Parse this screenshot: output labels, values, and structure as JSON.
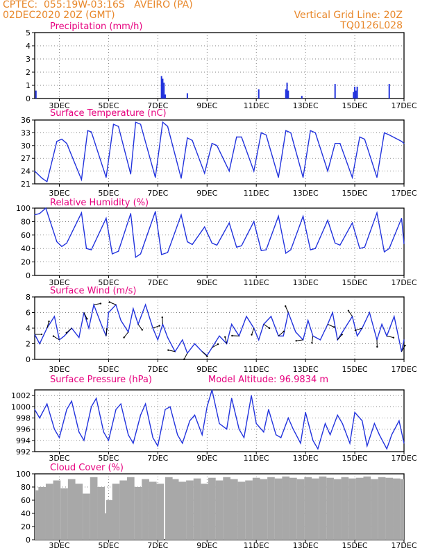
{
  "header": {
    "station": "CPTEC:  055:19W-03:16S   AVEIRO (PA)",
    "date": "02DEC2020 20Z (GMT)",
    "grid_line": "Vertical Grid Line: 20Z",
    "model": "TQ0126L028"
  },
  "colors": {
    "title": "#e6007e",
    "header": "#e8872a",
    "series": "#2233dd",
    "bars": "#2233dd",
    "cloud": "#a8a8a8"
  },
  "x_axis": {
    "start_day": 2.0,
    "end_day": 17.0,
    "tick_labels": [
      "3DEC",
      "5DEC",
      "7DEC",
      "9DEC",
      "11DEC",
      "13DEC",
      "15DEC",
      "17DEC"
    ]
  },
  "chart_data": [
    {
      "id": "precip",
      "type": "bar",
      "title": "Precipitation (mm/h)",
      "ylim": [
        0,
        5
      ],
      "yticks": [
        0,
        1,
        2,
        3,
        4,
        5
      ],
      "x": [
        2.05,
        7.15,
        7.2,
        7.25,
        7.3,
        8.2,
        11.1,
        12.2,
        12.25,
        12.3,
        12.85,
        14.2,
        14.95,
        15.0,
        15.05,
        15.1,
        16.4
      ],
      "values": [
        0.6,
        1.7,
        1.5,
        1.2,
        0.3,
        0.4,
        0.7,
        0.7,
        1.2,
        0.6,
        0.2,
        1.1,
        0.5,
        0.9,
        0.6,
        0.9,
        1.1
      ]
    },
    {
      "id": "temp",
      "type": "line",
      "title": "Surface Temperature (nC)",
      "ylim": [
        21,
        36
      ],
      "yticks": [
        21,
        24,
        27,
        30,
        33,
        36
      ],
      "x": [
        2.0,
        2.3,
        2.5,
        2.9,
        3.1,
        3.3,
        3.9,
        4.15,
        4.3,
        4.9,
        5.2,
        5.4,
        5.9,
        6.1,
        6.3,
        6.9,
        7.2,
        7.4,
        7.95,
        8.2,
        8.4,
        8.9,
        9.2,
        9.4,
        9.9,
        10.2,
        10.4,
        10.9,
        11.2,
        11.4,
        11.9,
        12.2,
        12.4,
        12.9,
        13.2,
        13.4,
        13.9,
        14.2,
        14.4,
        14.9,
        15.2,
        15.4,
        15.9,
        16.2,
        16.4,
        16.9,
        17.0
      ],
      "values": [
        24,
        22.3,
        21.5,
        31,
        31.5,
        30.5,
        22,
        33.5,
        33.2,
        22.5,
        35,
        34.5,
        23.3,
        35.5,
        35,
        22.5,
        35.5,
        34.5,
        22.3,
        31.8,
        31.2,
        23.5,
        30.5,
        30,
        24,
        32,
        32,
        24,
        33,
        32.5,
        22.5,
        33.5,
        33,
        22.5,
        33.5,
        33,
        24,
        30.5,
        30.5,
        22.5,
        32,
        31.5,
        22.5,
        33,
        32.5,
        31,
        30.5
      ]
    },
    {
      "id": "rh",
      "type": "line",
      "title": "Relative Humidity (%)",
      "ylim": [
        0,
        100
      ],
      "yticks": [
        0,
        20,
        40,
        60,
        80,
        100
      ],
      "x": [
        2.0,
        2.2,
        2.45,
        2.9,
        3.1,
        3.3,
        3.9,
        4.1,
        4.3,
        4.9,
        5.15,
        5.4,
        5.9,
        6.1,
        6.3,
        6.9,
        7.15,
        7.4,
        7.95,
        8.2,
        8.4,
        8.9,
        9.2,
        9.4,
        9.9,
        10.2,
        10.4,
        10.9,
        11.2,
        11.4,
        11.9,
        12.2,
        12.4,
        12.9,
        13.2,
        13.4,
        13.9,
        14.2,
        14.4,
        14.9,
        15.2,
        15.4,
        15.9,
        16.2,
        16.4,
        16.9,
        17.0
      ],
      "values": [
        90,
        92,
        100,
        50,
        43,
        48,
        93,
        40,
        38,
        85,
        32,
        36,
        92,
        27,
        32,
        95,
        31,
        34,
        90,
        50,
        46,
        72,
        48,
        45,
        78,
        42,
        44,
        80,
        37,
        38,
        88,
        33,
        38,
        88,
        38,
        40,
        82,
        48,
        45,
        78,
        40,
        42,
        93,
        35,
        40,
        85,
        47
      ]
    },
    {
      "id": "wind",
      "type": "line",
      "title": "Surface Wind (m/s)",
      "ylim": [
        0,
        8
      ],
      "yticks": [
        0,
        2,
        4,
        6,
        8
      ],
      "x": [
        2.0,
        2.2,
        2.5,
        2.8,
        3.0,
        3.2,
        3.5,
        3.8,
        4.0,
        4.2,
        4.4,
        4.7,
        4.9,
        5.0,
        5.3,
        5.5,
        5.8,
        6.0,
        6.2,
        6.5,
        6.8,
        7.0,
        7.2,
        7.4,
        7.7,
        8.0,
        8.2,
        8.5,
        8.8,
        9.0,
        9.2,
        9.5,
        9.8,
        10.0,
        10.3,
        10.6,
        10.9,
        11.1,
        11.3,
        11.6,
        11.9,
        12.1,
        12.3,
        12.6,
        12.9,
        13.1,
        13.3,
        13.6,
        13.9,
        14.1,
        14.3,
        14.6,
        14.9,
        15.1,
        15.3,
        15.6,
        15.9,
        16.1,
        16.3,
        16.6,
        16.9,
        17.0
      ],
      "values": [
        3.2,
        2.0,
        4.0,
        5.5,
        2.5,
        3.0,
        4.0,
        2.8,
        6.0,
        4.0,
        7.0,
        4.5,
        3.0,
        6.0,
        7.0,
        5.0,
        3.5,
        6.5,
        4.5,
        7.0,
        4.0,
        2.5,
        4.5,
        2.8,
        1.0,
        2.5,
        0.8,
        2.0,
        1.0,
        0.5,
        1.5,
        3.0,
        2.0,
        4.5,
        3.0,
        5.5,
        4.0,
        2.5,
        4.5,
        5.5,
        3.0,
        3.0,
        6.0,
        3.5,
        2.5,
        5.0,
        3.0,
        2.5,
        4.5,
        6.0,
        2.5,
        4.0,
        5.5,
        3.0,
        4.0,
        6.0,
        2.5,
        4.5,
        3.0,
        5.5,
        1.0,
        2.5
      ]
    },
    {
      "id": "pres",
      "type": "line",
      "title": "Surface Pressure (hPa)",
      "annotation": "Model Altitude: 96.9834 m",
      "ylim": [
        992,
        1003
      ],
      "yticks": [
        992,
        994,
        996,
        998,
        1000,
        1002
      ],
      "x": [
        2.0,
        2.2,
        2.5,
        2.8,
        3.0,
        3.3,
        3.5,
        3.8,
        4.0,
        4.3,
        4.5,
        4.8,
        5.0,
        5.3,
        5.5,
        5.8,
        6.0,
        6.3,
        6.5,
        6.8,
        7.0,
        7.3,
        7.5,
        7.8,
        8.0,
        8.3,
        8.5,
        8.8,
        9.0,
        9.2,
        9.5,
        9.8,
        10.0,
        10.3,
        10.5,
        10.8,
        11.0,
        11.3,
        11.5,
        11.8,
        12.0,
        12.3,
        12.5,
        12.8,
        13.0,
        13.3,
        13.5,
        13.8,
        14.0,
        14.3,
        14.5,
        14.8,
        15.0,
        15.3,
        15.5,
        15.8,
        16.0,
        16.3,
        16.5,
        16.8,
        17.0
      ],
      "values": [
        999.5,
        998,
        1000.5,
        996,
        994.5,
        999.5,
        1001,
        995.5,
        994,
        1000,
        1001.5,
        995.5,
        994,
        999.5,
        1000.5,
        995,
        993.5,
        998.5,
        1000.5,
        994.5,
        993,
        999.5,
        1000,
        995,
        993.5,
        997.5,
        998.5,
        995,
        1000,
        1003,
        997,
        996,
        1001.5,
        996,
        994.5,
        1002,
        997,
        995.5,
        999.5,
        995,
        994.5,
        998,
        996,
        993.5,
        999,
        994,
        992.5,
        997,
        995,
        998.5,
        997,
        993.5,
        999,
        997.5,
        993,
        997,
        995,
        992.5,
        995,
        997.5,
        993.5
      ]
    },
    {
      "id": "cloud",
      "type": "bar",
      "title": "Cloud Cover (%)",
      "ylim": [
        0,
        100
      ],
      "yticks": [
        0,
        20,
        40,
        60,
        80,
        100
      ],
      "x": [
        2.0,
        2.3,
        2.6,
        2.9,
        3.2,
        3.5,
        3.8,
        4.1,
        4.4,
        4.7,
        4.95,
        5.0,
        5.05,
        5.3,
        5.6,
        5.9,
        6.2,
        6.5,
        6.8,
        7.1,
        7.4,
        7.45,
        7.5,
        7.7,
        8.0,
        8.3,
        8.6,
        8.9,
        9.2,
        9.5,
        9.8,
        10.1,
        10.4,
        10.7,
        11.0,
        11.3,
        11.6,
        11.9,
        12.2,
        12.5,
        12.8,
        13.1,
        13.4,
        13.7,
        14.0,
        14.3,
        14.6,
        14.9,
        15.2,
        15.5,
        15.8,
        16.1,
        16.4,
        16.7,
        17.0
      ],
      "values": [
        75,
        80,
        85,
        90,
        78,
        92,
        85,
        70,
        95,
        80,
        40,
        5,
        60,
        85,
        90,
        95,
        80,
        92,
        88,
        85,
        0,
        95,
        90,
        92,
        88,
        90,
        93,
        85,
        94,
        90,
        95,
        92,
        88,
        90,
        94,
        92,
        95,
        93,
        96,
        94,
        92,
        95,
        93,
        96,
        94,
        92,
        95,
        93,
        94,
        96,
        92,
        95,
        94,
        93,
        92
      ]
    }
  ]
}
